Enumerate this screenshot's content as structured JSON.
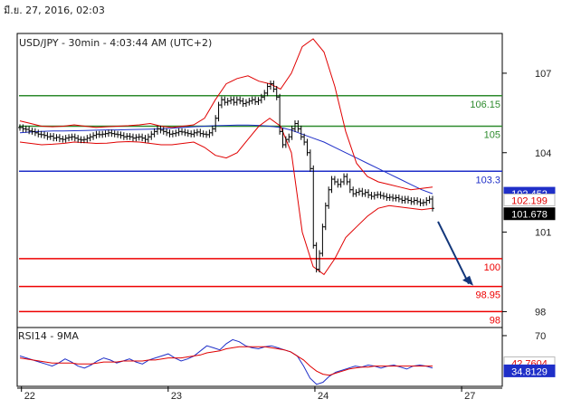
{
  "header": {
    "date": "มี.ย. 27, 2016, 02:03",
    "main_title": "USD/JPY - 30min - 4:03:44 AM (UTC+2)",
    "rsi_title": "RSI14 - 9MA"
  },
  "colors": {
    "background": "#ffffff",
    "frame": "#000000",
    "price_bars": "#000000",
    "bollinger": "#e00000",
    "ma_blue": "#1f2fc8",
    "ma_green": "#5a8a00",
    "level_green": "#2e8b2e",
    "level_blue": "#1f2fc8",
    "level_red": "#ee0000",
    "arrow": "#12367a",
    "rsi_line": "#1f2fc8",
    "rsi_ma": "#e00000"
  },
  "chart_data": [
    {
      "type": "line",
      "title": "USD/JPY - 30min - 4:03:44 AM (UTC+2)",
      "ylim": [
        97.4,
        108.5
      ],
      "y_ticks": [
        "107",
        "104",
        "101",
        "98"
      ],
      "y_tick_values": [
        107,
        104,
        101,
        98
      ],
      "x_ticks": [
        "22",
        "23",
        "24",
        "27"
      ],
      "x_tick_values": [
        0.5,
        48.5,
        96.5,
        144.5
      ],
      "levels": [
        {
          "value": 106.15,
          "label": "106.15",
          "color": "#2e8b2e"
        },
        {
          "value": 105,
          "label": "105",
          "color": "#2e8b2e"
        },
        {
          "value": 103.3,
          "label": "103.3",
          "color": "#1f2fc8"
        },
        {
          "value": 100,
          "label": "100",
          "color": "#ee0000"
        },
        {
          "value": 98.95,
          "label": "98.95",
          "color": "#ee0000"
        },
        {
          "value": 98,
          "label": "98",
          "color": "#ee0000"
        }
      ],
      "price_tags": [
        {
          "value": 102.452,
          "label": "102.452",
          "bg": "#1f2fc8",
          "fg": "#ffffff"
        },
        {
          "value": 102.199,
          "label": "102.199",
          "bg": "#ffffff",
          "fg": "#e00000"
        },
        {
          "value": 101.678,
          "label": "101.678",
          "bg": "#000000",
          "fg": "#ffffff"
        }
      ],
      "series": [
        {
          "values": [
            104.95,
            104.9,
            104.88,
            104.82,
            104.8,
            104.75,
            104.7,
            104.68,
            104.65,
            104.6,
            104.62,
            104.55,
            104.58,
            104.52,
            104.5,
            104.55,
            104.58,
            104.6,
            104.55,
            104.5,
            104.48,
            104.5,
            104.55,
            104.6,
            104.65,
            104.7,
            104.68,
            104.7,
            104.72,
            104.75,
            104.72,
            104.7,
            104.68,
            104.65,
            104.6,
            104.62,
            104.6,
            104.55,
            104.58,
            104.6,
            104.55,
            104.5,
            104.6,
            104.7,
            104.8,
            104.9,
            104.85,
            104.8,
            104.75,
            104.7,
            104.72,
            104.75,
            104.8,
            104.78,
            104.75,
            104.72,
            104.7,
            104.75,
            104.78,
            104.72,
            104.7,
            104.68,
            104.75,
            104.9,
            105.3,
            105.8,
            106.0,
            105.9,
            105.95,
            106.0,
            105.9,
            106.0,
            105.95,
            105.85,
            105.9,
            105.95,
            106.0,
            105.92,
            105.98,
            106.1,
            106.25,
            106.5,
            106.6,
            106.4,
            106.1,
            104.8,
            104.3,
            104.5,
            104.6,
            104.9,
            105.1,
            104.9,
            104.6,
            104.4,
            104.0,
            103.4,
            100.5,
            99.6,
            100.2,
            101.2,
            102.0,
            102.6,
            103.0,
            102.9,
            102.8,
            102.9,
            103.1,
            102.9,
            102.6,
            102.45,
            102.5,
            102.55,
            102.45,
            102.5,
            102.4,
            102.35,
            102.4,
            102.42,
            102.38,
            102.35,
            102.3,
            102.32,
            102.28,
            102.3,
            102.25,
            102.2,
            102.25,
            102.2,
            102.15,
            102.2,
            102.15,
            102.1,
            102.12,
            102.2,
            102.25,
            101.9
          ]
        },
        {
          "name": "MA blue",
          "values": [
            104.75,
            104.78,
            104.8,
            104.82,
            104.82,
            104.83,
            104.84,
            104.85,
            104.86,
            104.86,
            104.87,
            104.88,
            104.89,
            104.9,
            104.92,
            104.95,
            104.98,
            105.0,
            105.02,
            105.03,
            105.04,
            105.04,
            105.03,
            105.0,
            104.95,
            104.85,
            104.7,
            104.55,
            104.4,
            104.2,
            104.0,
            103.8,
            103.6,
            103.4,
            103.2,
            103.0,
            102.8,
            102.6,
            102.45
          ]
        },
        {
          "name": "Bollinger upper",
          "values": [
            105.2,
            105.1,
            105.0,
            104.98,
            105.0,
            105.05,
            105.0,
            104.95,
            104.98,
            105.0,
            105.02,
            105.05,
            105.1,
            105.0,
            104.95,
            105.0,
            105.05,
            105.3,
            106.0,
            106.6,
            106.8,
            106.9,
            106.7,
            106.6,
            106.4,
            107.0,
            108.0,
            108.3,
            107.8,
            106.5,
            104.8,
            103.6,
            103.1,
            102.9,
            102.8,
            102.7,
            102.6,
            102.65,
            102.7
          ]
        },
        {
          "name": "Bollinger lower",
          "values": [
            104.4,
            104.35,
            104.3,
            104.32,
            104.35,
            104.4,
            104.38,
            104.35,
            104.36,
            104.4,
            104.42,
            104.4,
            104.35,
            104.3,
            104.3,
            104.35,
            104.4,
            104.2,
            103.9,
            103.8,
            104.0,
            104.5,
            105.0,
            105.3,
            105.0,
            104.0,
            101.0,
            99.7,
            99.4,
            100.0,
            100.8,
            101.2,
            101.6,
            101.9,
            102.0,
            101.95,
            101.9,
            101.85,
            101.9
          ]
        }
      ]
    },
    {
      "type": "line",
      "title": "RSI14 - 9MA",
      "ylim": [
        20,
        78
      ],
      "y_ticks": [
        "70"
      ],
      "y_tick_values": [
        70
      ],
      "price_tags": [
        {
          "value": 42.7604,
          "label": "42.7604",
          "bg": "#ffffff",
          "fg": "#e00000"
        },
        {
          "value": 34.8129,
          "label": "34.8129",
          "bg": "#1f2fc8",
          "fg": "#ffffff"
        }
      ],
      "series": [
        {
          "name": "RSI14",
          "values": [
            50,
            48,
            46,
            44,
            42,
            40,
            43,
            47,
            44,
            40,
            38,
            41,
            45,
            48,
            46,
            43,
            45,
            47,
            44,
            42,
            46,
            48,
            50,
            52,
            48,
            45,
            47,
            50,
            55,
            60,
            58,
            56,
            62,
            66,
            64,
            60,
            58,
            57,
            59,
            60,
            58,
            56,
            54,
            50,
            40,
            28,
            22,
            24,
            30,
            34,
            36,
            38,
            40,
            39,
            41,
            40,
            38,
            40,
            41,
            39,
            37,
            40,
            41,
            40,
            38
          ]
        },
        {
          "name": "RSI 9MA",
          "values": [
            48,
            47,
            46,
            45,
            44,
            43,
            43,
            43,
            43,
            42,
            42,
            42,
            43,
            44,
            44,
            44,
            45,
            45,
            45,
            45,
            46,
            46,
            47,
            48,
            48,
            48,
            49,
            50,
            51,
            53,
            54,
            55,
            57,
            58,
            59,
            59,
            59,
            59,
            59,
            58,
            57,
            56,
            54,
            50,
            46,
            40,
            35,
            32,
            31,
            33,
            35,
            37,
            38,
            39,
            39,
            40,
            40,
            40,
            40,
            40,
            40,
            40,
            40,
            40,
            40
          ]
        }
      ]
    }
  ]
}
